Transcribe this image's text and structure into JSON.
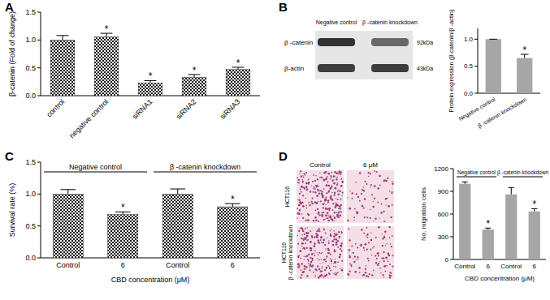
{
  "chart_data": [
    {
      "type": "bar",
      "panel": "A",
      "y_label": "β-catenin (Fold of change)",
      "categories": [
        "control",
        "negative control",
        "siRNA1",
        "siRNA2",
        "siRNA3"
      ],
      "values": [
        1.0,
        1.06,
        0.23,
        0.33,
        0.47
      ],
      "errors": [
        0.08,
        0.06,
        0.04,
        0.05,
        0.04
      ],
      "significance": [
        null,
        "*",
        "*",
        "*",
        "*"
      ],
      "color": "#1a1a1a",
      "ylim": [
        0,
        1.5
      ],
      "yticks": [
        {
          "value": 0,
          "label": "0.0"
        },
        {
          "value": 0.5,
          "label": "0.5"
        },
        {
          "value": 1.0,
          "label": "1.0"
        },
        {
          "value": 1.5,
          "label": "1.5"
        }
      ]
    },
    {
      "type": "bar",
      "panel": "B",
      "blot": {
        "columns": [
          "Negative control",
          "β -catenin knockdown"
        ],
        "rows": [
          {
            "label": "β -catenin",
            "size": "92kDa"
          },
          {
            "label": "β-actin",
            "size": "43kDa"
          }
        ]
      },
      "y_label": "Protein expression (β-catenin/β -actin)",
      "categories": [
        "Negative control",
        "β -catenin knockdown"
      ],
      "values": [
        1.0,
        0.65
      ],
      "errors": [
        0,
        0.07
      ],
      "significance": [
        null,
        "*"
      ],
      "color": "#a6a6a6",
      "ylim": [
        0,
        1.2
      ],
      "yticks": [
        {
          "value": 0,
          "label": "0.0"
        },
        {
          "value": 0.5,
          "label": "0.5"
        },
        {
          "value": 1.0,
          "label": "1.0"
        }
      ]
    },
    {
      "type": "bar",
      "panel": "C",
      "y_label": "Survival rate (%)",
      "x_label": "CBD concentration (μM)",
      "groups": [
        "Negative control",
        "β -catenin knockdown"
      ],
      "categories": [
        "Control",
        "6",
        "Control",
        "6"
      ],
      "values": [
        1.0,
        0.68,
        1.0,
        0.8
      ],
      "errors": [
        0.07,
        0.04,
        0.08,
        0.05
      ],
      "significance": [
        null,
        "*",
        null,
        "*"
      ],
      "color": "#1a1a1a",
      "ylim": [
        0,
        1.5
      ],
      "yticks": [
        {
          "value": 0,
          "label": "0.0"
        },
        {
          "value": 0.5,
          "label": "0.5"
        },
        {
          "value": 1.0,
          "label": "1.0"
        },
        {
          "value": 1.5,
          "label": "1.5"
        }
      ]
    },
    {
      "type": "bar",
      "panel": "D",
      "images": {
        "columns": [
          "Control",
          "6 μM"
        ],
        "rows": [
          [
            "HCT116"
          ],
          [
            "HCT116",
            "β -catenin knockdown"
          ]
        ]
      },
      "y_label": "No. migration cells",
      "x_label": "CBD concentration (μM)",
      "groups": [
        "Negative control",
        "β -catenin knockdown"
      ],
      "categories": [
        "Control",
        "6",
        "Control",
        "6"
      ],
      "values": [
        1000,
        395,
        860,
        635
      ],
      "errors": [
        25,
        20,
        90,
        35
      ],
      "significance": [
        null,
        "*",
        null,
        "*"
      ],
      "color": "#a6a6a6",
      "ylim": [
        0,
        1200
      ],
      "yticks": [
        0,
        300,
        600,
        900,
        1200
      ]
    }
  ]
}
